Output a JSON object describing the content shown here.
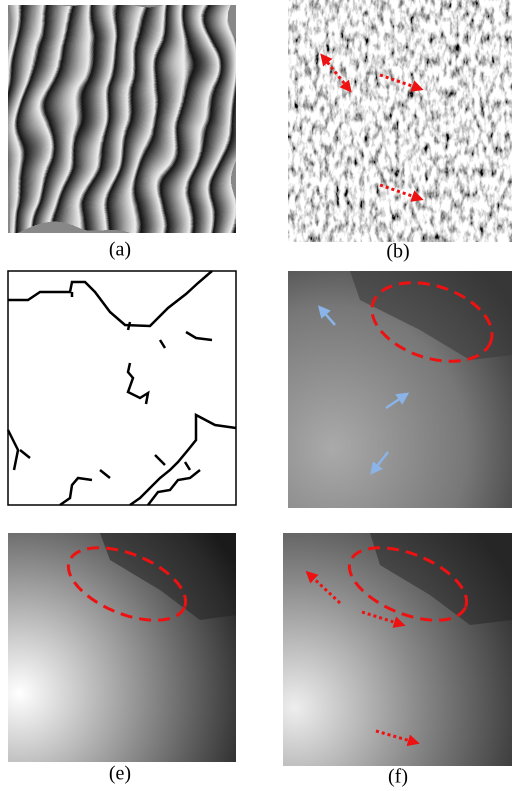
{
  "captions": [
    "(a)",
    "(b)",
    "(e)",
    "(f)"
  ]
}
